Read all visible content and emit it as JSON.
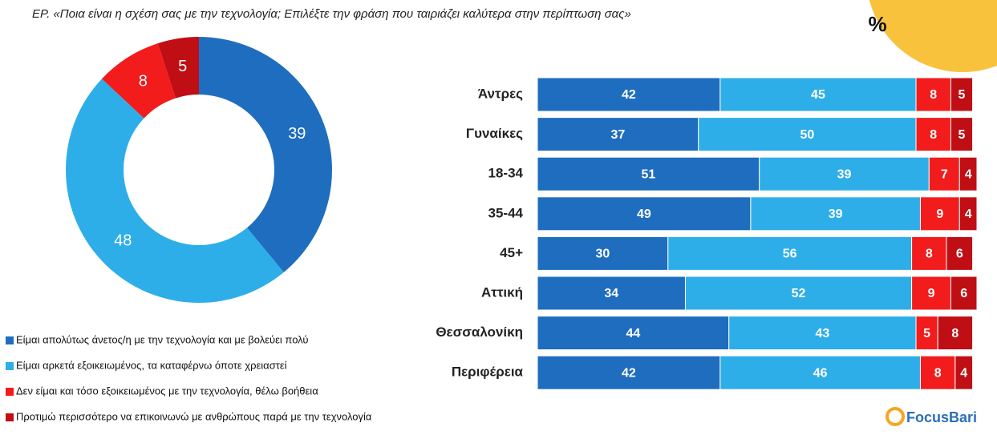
{
  "header": {
    "title": "ΕΡ.  «Ποια είναι η σχέση σας με την τεχνολογία; Επιλέξτε την φράση που ταιριάζει καλύτερα στην περίπτωση σας»",
    "unit": "%",
    "logo": "FocusBari"
  },
  "chart_data": [
    {
      "type": "donut",
      "values": [
        39,
        48,
        8,
        5
      ],
      "colors": [
        "#1f6dbf",
        "#2eaee8",
        "#f21c1c",
        "#c00f14"
      ]
    },
    {
      "type": "stacked-bar",
      "categories": [
        "Άντρες",
        "Γυναίκες",
        "18-34",
        "35-44",
        "45+",
        "Αττική",
        "Θεσσαλονίκη",
        "Περιφέρεια"
      ],
      "series": [
        {
          "name": "Είμαι απολύτως άνετος/η με την τεχνολογία και με βολεύει  πολύ",
          "color": "#1f6dbf",
          "values": [
            42,
            37,
            51,
            49,
            30,
            34,
            44,
            42
          ]
        },
        {
          "name": "Είμαι αρκετά εξοικειωμένος, τα καταφέρνω όποτε χρειαστεί",
          "color": "#2eaee8",
          "values": [
            45,
            50,
            39,
            39,
            56,
            52,
            43,
            46
          ]
        },
        {
          "name": "Δεν είμαι και τόσο εξοικειωμένος με την τεχνολογία, θέλω βοήθεια",
          "color": "#f21c1c",
          "values": [
            8,
            8,
            7,
            9,
            8,
            9,
            5,
            8
          ]
        },
        {
          "name": "Προτιμώ  περισσότερο να επικοινωνώ με ανθρώπους παρά με την τεχνολογία",
          "color": "#c00f14",
          "values": [
            5,
            5,
            4,
            4,
            6,
            6,
            8,
            4
          ]
        }
      ]
    }
  ]
}
